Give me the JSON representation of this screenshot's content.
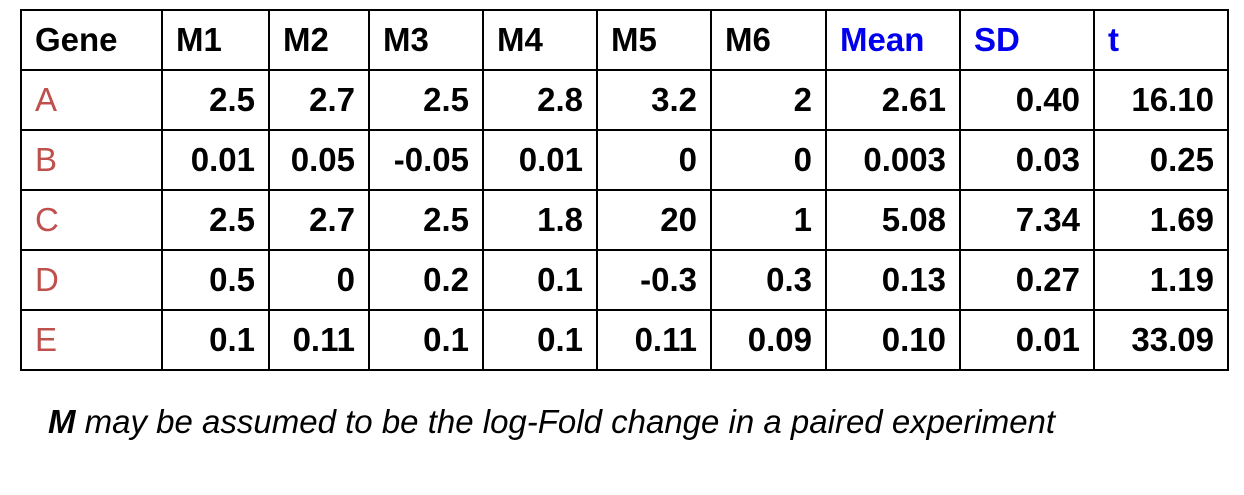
{
  "table": {
    "headers": [
      "Gene",
      "M1",
      "M2",
      "M3",
      "M4",
      "M5",
      "M6",
      "Mean",
      "SD",
      "t"
    ],
    "rows": [
      [
        "A",
        "2.5",
        "2.7",
        "2.5",
        "2.8",
        "3.2",
        "2",
        "2.61",
        "0.40",
        "16.10"
      ],
      [
        "B",
        "0.01",
        "0.05",
        "-0.05",
        "0.01",
        "0",
        "0",
        "0.003",
        "0.03",
        "0.25"
      ],
      [
        "C",
        "2.5",
        "2.7",
        "2.5",
        "1.8",
        "20",
        "1",
        "5.08",
        "7.34",
        "1.69"
      ],
      [
        "D",
        "0.5",
        "0",
        "0.2",
        "0.1",
        "-0.3",
        "0.3",
        "0.13",
        "0.27",
        "1.19"
      ],
      [
        "E",
        "0.1",
        "0.11",
        "0.1",
        "0.1",
        "0.11",
        "0.09",
        "0.10",
        "0.01",
        "33.09"
      ]
    ]
  },
  "colors": {
    "gene_label": "#c0504d",
    "stat_header": "#0000ee",
    "text": "#000000"
  },
  "footnote": {
    "emphasis": "M",
    "text": " may be assumed to be the log-Fold change in a paired experiment"
  }
}
